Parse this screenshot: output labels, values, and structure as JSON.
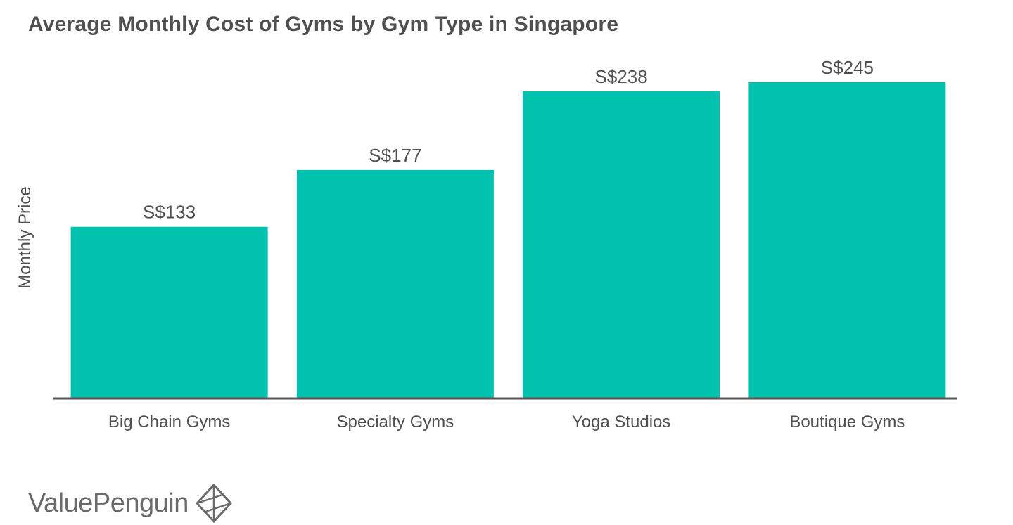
{
  "brand": {
    "name": "ValuePenguin"
  },
  "chart_data": {
    "type": "bar",
    "title": "Average Monthly Cost of Gyms by Gym Type in Singapore",
    "xlabel": "",
    "ylabel": "Monthly Price",
    "categories": [
      "Big Chain Gyms",
      "Specialty Gyms",
      "Yoga Studios",
      "Boutique Gyms"
    ],
    "values": [
      133,
      177,
      238,
      245
    ],
    "value_labels": [
      "S$133",
      "S$177",
      "S$238",
      "S$245"
    ],
    "ylim": [
      0,
      245
    ],
    "grid": false,
    "legend": "none",
    "bar_color": "#00c2ae",
    "axis_color": "#555555",
    "text_color": "#505050"
  }
}
